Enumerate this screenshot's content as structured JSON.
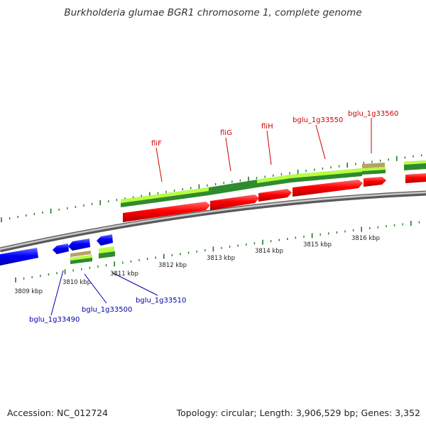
{
  "title": "Burkholderia glumae BGR1 chromosome 1, complete genome",
  "footer": {
    "accession": "Accession: NC_012724",
    "summary": "Topology: circular; Length: 3,906,529 bp; Genes: 3,352"
  },
  "colors": {
    "forward_label": "#cc0000",
    "reverse_label": "#0000aa",
    "cds_forward": "#ff0000",
    "cds_reverse": "#0000ff",
    "gene": "#2e8b2e",
    "gene_highlight": "#b8ff40",
    "pseudo": "#b8a06a",
    "backbone": "#808080",
    "tick": "#1f7a1f"
  },
  "scale_labels": [
    {
      "text": "3809 kbp"
    },
    {
      "text": "3810 kbp"
    },
    {
      "text": "3811 kbp"
    },
    {
      "text": "3812 kbp"
    },
    {
      "text": "3813 kbp"
    },
    {
      "text": "3814 kbp"
    },
    {
      "text": "3815 kbp"
    },
    {
      "text": "3816 kbp"
    }
  ],
  "forward_genes": [
    {
      "name": "fliF"
    },
    {
      "name": "fliG"
    },
    {
      "name": "fliH"
    },
    {
      "name": "bglu_1g33550"
    },
    {
      "name": "bglu_1g33560"
    }
  ],
  "reverse_genes": [
    {
      "name": "bglu_1g33490"
    },
    {
      "name": "bglu_1g33500"
    },
    {
      "name": "bglu_1g33510"
    }
  ]
}
